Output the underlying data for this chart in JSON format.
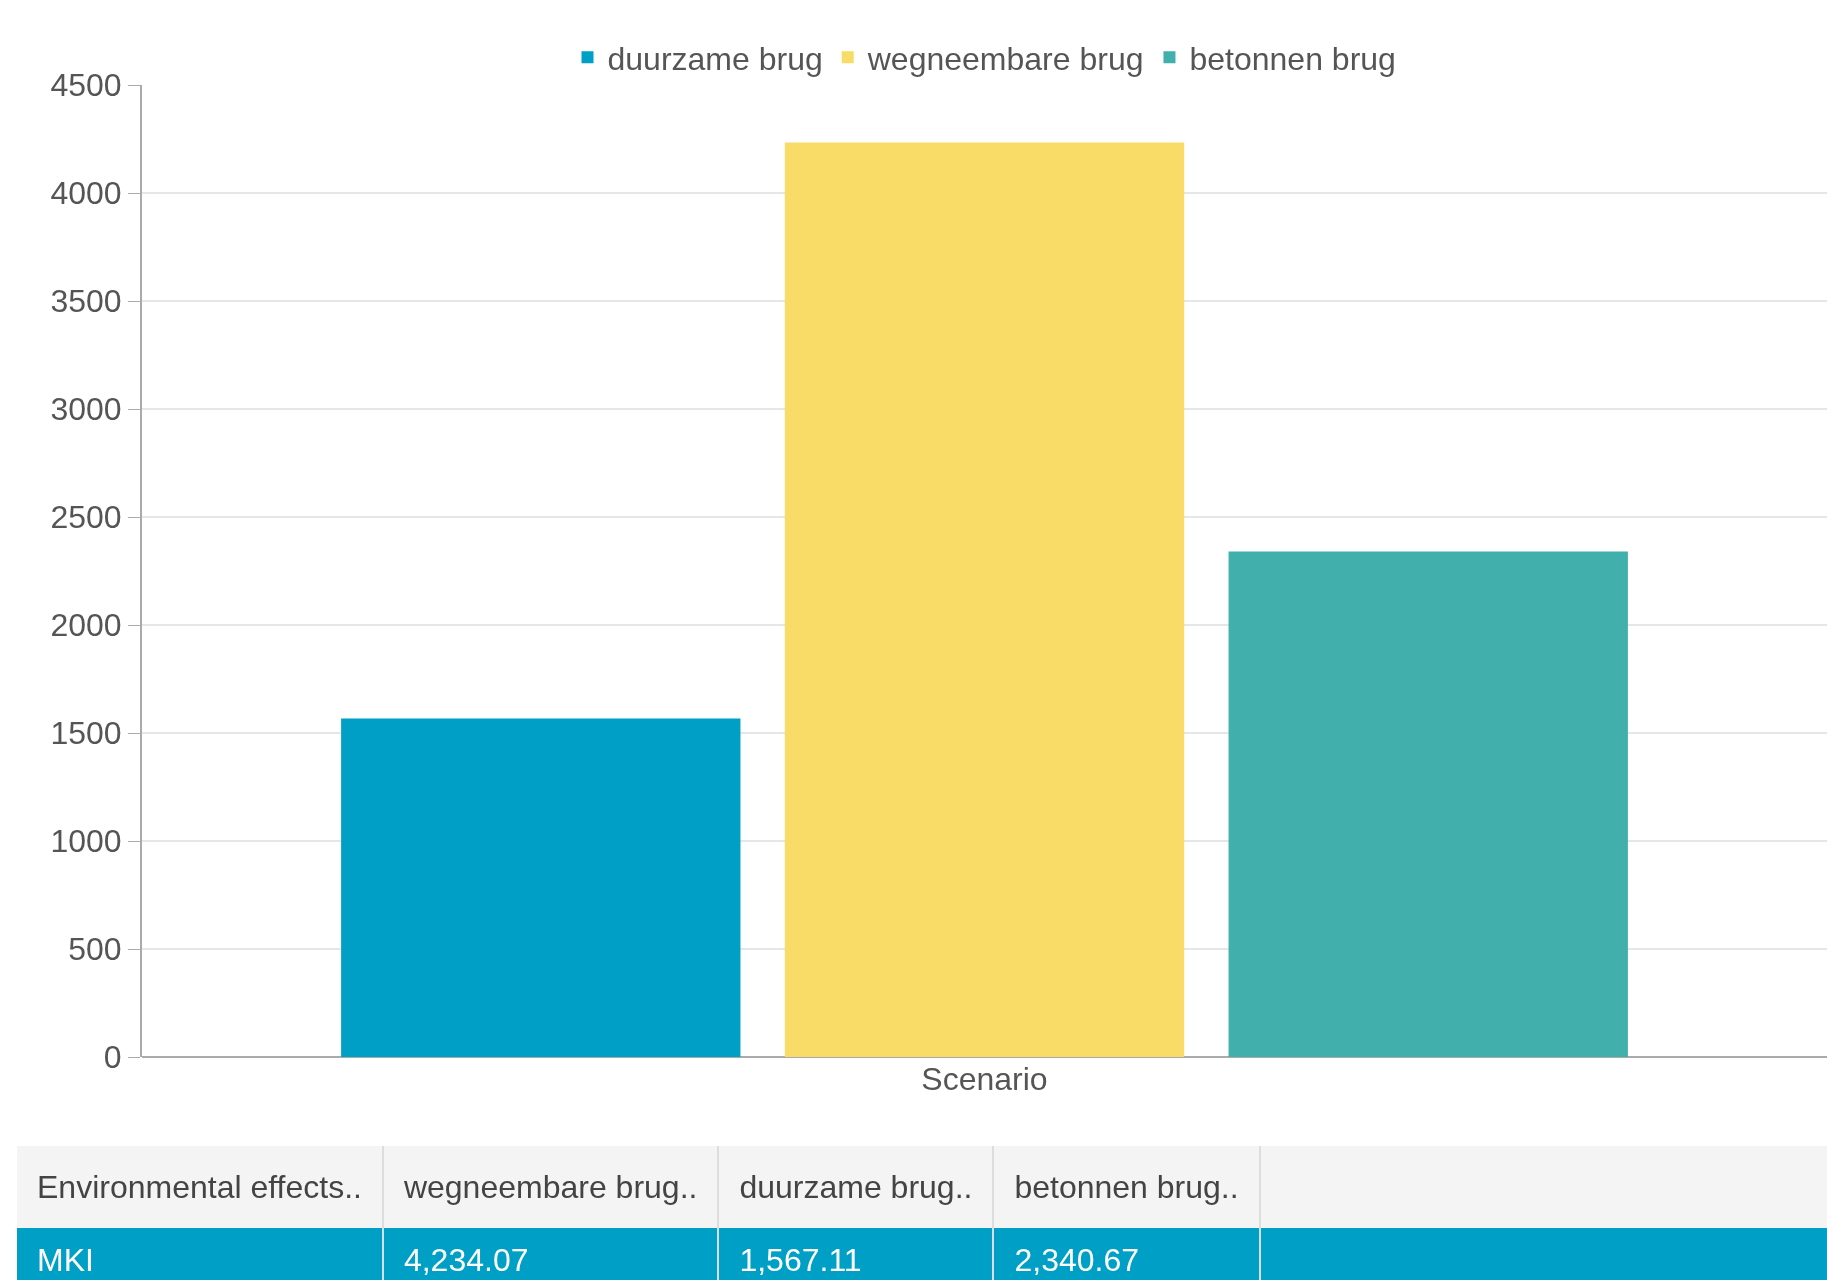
{
  "chart_data": {
    "type": "bar",
    "categories": [
      "Scenario"
    ],
    "series": [
      {
        "name": "duurzame brug",
        "color": "#00a0c6",
        "values": [
          1567.11
        ]
      },
      {
        "name": "wegneembare brug",
        "color": "#f9dc67",
        "values": [
          4234.07
        ]
      },
      {
        "name": "betonnen brug",
        "color": "#41afac",
        "values": [
          2340.67
        ]
      }
    ],
    "ylim": [
      0,
      4500
    ],
    "yticks": [
      0,
      500,
      1000,
      1500,
      2000,
      2500,
      3000,
      3500,
      4000,
      4500
    ],
    "grid": "y",
    "legend": "top",
    "annotations": [
      "Environmental effects..",
      "wegneembare brug..",
      "duurzame brug..",
      "betonnen brug..",
      "MKI",
      "4,234.07",
      "1,567.11",
      "2,340.67"
    ]
  }
}
